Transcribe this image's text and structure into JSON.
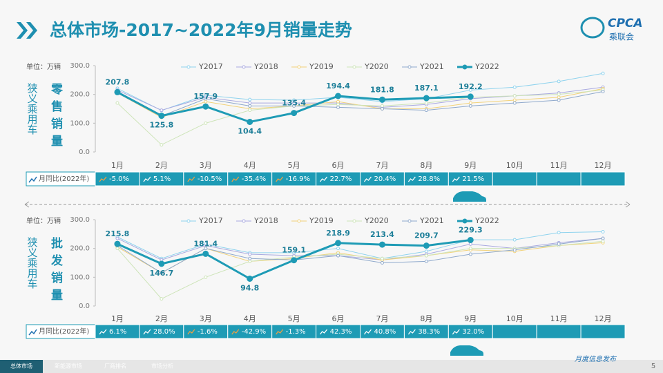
{
  "header": {
    "title": "总体市场-2017~2022年9月销量走势",
    "logo": "CPCA",
    "logo_sub": "乘联会"
  },
  "chart_data": [
    {
      "type": "line",
      "unit": "单位：万辆",
      "side_label": "狭义乘用车",
      "title": "零售销量",
      "categories": [
        "1月",
        "2月",
        "3月",
        "4月",
        "5月",
        "6月",
        "7月",
        "8月",
        "9月",
        "10月",
        "11月",
        "12月"
      ],
      "ylim": [
        0,
        300
      ],
      "yticks": [
        {
          "value": 0,
          "label": "0.0"
        },
        {
          "value": 100,
          "label": "100.0"
        },
        {
          "value": 200,
          "label": "200.0"
        },
        {
          "value": 300,
          "label": "300.0"
        }
      ],
      "series": [
        {
          "name": "Y2017",
          "color": "#8fd3ee",
          "values": [
            221,
            144,
            197,
            182,
            180,
            190,
            175,
            185,
            215,
            225,
            245,
            273
          ]
        },
        {
          "name": "Y2018",
          "color": "#a9a9e0",
          "values": [
            215,
            145,
            190,
            170,
            170,
            170,
            155,
            165,
            185,
            195,
            205,
            225
          ]
        },
        {
          "name": "Y2019",
          "color": "#f2d27a",
          "values": [
            205,
            120,
            175,
            150,
            160,
            175,
            150,
            150,
            170,
            180,
            190,
            220
          ]
        },
        {
          "name": "Y2020",
          "color": "#cde4b8",
          "values": [
            170,
            25,
            100,
            145,
            160,
            165,
            160,
            170,
            190,
            195,
            200,
            215
          ]
        },
        {
          "name": "Y2021",
          "color": "#8fa9cc",
          "values": [
            205,
            125,
            185,
            160,
            160,
            155,
            150,
            145,
            160,
            170,
            180,
            210
          ]
        },
        {
          "name": "Y2022",
          "color": "#1e9bb5",
          "values": [
            207.8,
            125.8,
            157.9,
            104.4,
            135.4,
            194.4,
            181.8,
            187.1,
            192.2,
            null,
            null,
            null
          ]
        }
      ],
      "yoy_label": "月同比(2022年)",
      "yoy": [
        "-5.0%",
        "5.1%",
        "-10.5%",
        "-35.4%",
        "-16.9%",
        "22.7%",
        "20.4%",
        "28.8%",
        "21.5%"
      ]
    },
    {
      "type": "line",
      "unit": "单位：万辆",
      "side_label": "狭义乘用车",
      "title": "批发销量",
      "categories": [
        "1月",
        "2月",
        "3月",
        "4月",
        "5月",
        "6月",
        "7月",
        "8月",
        "9月",
        "10月",
        "11月",
        "12月"
      ],
      "ylim": [
        0,
        300
      ],
      "yticks": [
        {
          "value": 0,
          "label": "0.0"
        },
        {
          "value": 100,
          "label": "100.0"
        },
        {
          "value": 200,
          "label": "200.0"
        },
        {
          "value": 300,
          "label": "300.0"
        }
      ],
      "series": [
        {
          "name": "Y2017",
          "color": "#8fd3ee",
          "values": [
            240,
            165,
            215,
            185,
            185,
            200,
            165,
            190,
            230,
            230,
            255,
            258
          ]
        },
        {
          "name": "Y2018",
          "color": "#a9a9e0",
          "values": [
            235,
            160,
            210,
            180,
            175,
            175,
            160,
            180,
            215,
            200,
            220,
            235
          ]
        },
        {
          "name": "Y2019",
          "color": "#f2d27a",
          "values": [
            205,
            115,
            200,
            155,
            165,
            185,
            160,
            175,
            195,
            190,
            210,
            220
          ]
        },
        {
          "name": "Y2020",
          "color": "#cde4b8",
          "values": [
            200,
            25,
            100,
            155,
            170,
            180,
            165,
            175,
            200,
            200,
            210,
            225
          ]
        },
        {
          "name": "Y2021",
          "color": "#8fa9cc",
          "values": [
            210,
            115,
            200,
            165,
            160,
            175,
            150,
            155,
            180,
            195,
            215,
            235
          ]
        },
        {
          "name": "Y2022",
          "color": "#1e9bb5",
          "values": [
            215.8,
            146.7,
            181.4,
            94.8,
            159.1,
            218.9,
            213.4,
            209.7,
            229.3,
            null,
            null,
            null
          ]
        }
      ],
      "yoy_label": "月同比(2022年)",
      "yoy": [
        "6.1%",
        "28.0%",
        "-1.6%",
        "-42.9%",
        "-1.3%",
        "42.3%",
        "40.8%",
        "38.3%",
        "32.0%"
      ]
    }
  ],
  "footer": {
    "tabs": [
      "总体市场",
      "新能源市场",
      "厂商排名",
      "市场分析"
    ],
    "note": "月度信息发布",
    "page": "5"
  }
}
